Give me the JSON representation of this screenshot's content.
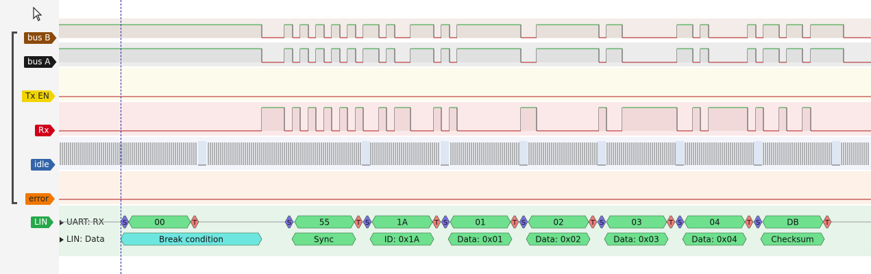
{
  "channels": {
    "bus_b": "bus B",
    "bus_a": "bus A",
    "tx_en": "Tx EN",
    "rx": "Rx",
    "idle": "idle",
    "error": "error",
    "lin": "LIN"
  },
  "decoders": {
    "uart_rx": "UART: RX",
    "lin_data": "LIN: Data"
  },
  "uart_bytes": [
    "00",
    "55",
    "1A",
    "01",
    "02",
    "03",
    "04",
    "DB"
  ],
  "uart_markers": {
    "start": "S",
    "stop": "T"
  },
  "lin_fields": [
    "Break condition",
    "Sync",
    "ID: 0x1A",
    "Data: 0x01",
    "Data: 0x02",
    "Data: 0x03",
    "Data: 0x04",
    "Checksum"
  ],
  "colors": {
    "bus_b": "#8b4a0a",
    "bus_a": "#1a1a1a",
    "tx_en": "#f2d500",
    "rx": "#d0001a",
    "idle": "#3364a8",
    "error": "#f07800",
    "lin": "#26a84a",
    "uart_byte": "#6ee08e",
    "lin_field": "#6ee08e",
    "break": "#6ee6e0",
    "start_marker": "#7a6ee0",
    "stop_marker": "#ee7a7a",
    "high_line": "#27a032",
    "low_line": "#b01818"
  }
}
